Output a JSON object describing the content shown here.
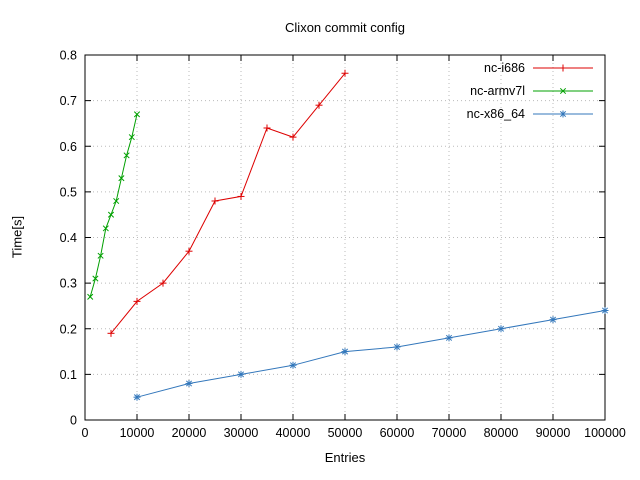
{
  "chart_data": {
    "type": "line",
    "title": "Clixon commit config",
    "xlabel": "Entries",
    "ylabel": "Time[s]",
    "xlim": [
      0,
      100000
    ],
    "ylim": [
      0,
      0.8
    ],
    "x_ticks": [
      0,
      10000,
      20000,
      30000,
      40000,
      50000,
      60000,
      70000,
      80000,
      90000,
      100000
    ],
    "y_ticks": [
      0,
      0.1,
      0.2,
      0.3,
      0.4,
      0.5,
      0.6,
      0.7,
      0.8
    ],
    "grid": true,
    "grid_color": "#bbbbbb",
    "axis_color": "#000000",
    "legend_position": "top-right-inside",
    "series": [
      {
        "name": "nc-i686",
        "color": "#dd0000",
        "marker": "plus",
        "points": [
          [
            5000,
            0.19
          ],
          [
            10000,
            0.26
          ],
          [
            15000,
            0.3
          ],
          [
            20000,
            0.37
          ],
          [
            25000,
            0.48
          ],
          [
            30000,
            0.49
          ],
          [
            35000,
            0.64
          ],
          [
            40000,
            0.62
          ],
          [
            45000,
            0.69
          ],
          [
            50000,
            0.76
          ]
        ]
      },
      {
        "name": "nc-armv7l",
        "color": "#00a000",
        "marker": "cross",
        "points": [
          [
            1000,
            0.27
          ],
          [
            2000,
            0.31
          ],
          [
            3000,
            0.36
          ],
          [
            4000,
            0.42
          ],
          [
            5000,
            0.45
          ],
          [
            6000,
            0.48
          ],
          [
            7000,
            0.53
          ],
          [
            8000,
            0.58
          ],
          [
            9000,
            0.62
          ],
          [
            10000,
            0.67
          ]
        ]
      },
      {
        "name": "nc-x86_64",
        "color": "#3377bb",
        "marker": "asterisk",
        "points": [
          [
            10000,
            0.05
          ],
          [
            20000,
            0.08
          ],
          [
            30000,
            0.1
          ],
          [
            40000,
            0.12
          ],
          [
            50000,
            0.15
          ],
          [
            60000,
            0.16
          ],
          [
            70000,
            0.18
          ],
          [
            80000,
            0.2
          ],
          [
            90000,
            0.22
          ],
          [
            100000,
            0.24
          ]
        ]
      }
    ]
  }
}
